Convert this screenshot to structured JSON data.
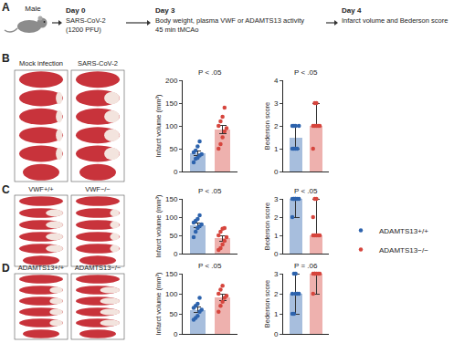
{
  "schematic": {
    "panel_label": "A",
    "subject": "Male",
    "steps": [
      {
        "day": "Day 0",
        "lines": [
          "SARS-CoV-2",
          "(1200 PFU)"
        ]
      },
      {
        "day": "Day 3",
        "lines": [
          "Body weight, plasma VWF or ADAMTS13 activity",
          "45 min tMCAo"
        ]
      },
      {
        "day": "Day 4",
        "lines": [
          "Infarct volume and Bederson score"
        ]
      }
    ]
  },
  "chart_data": [
    {
      "panel_label": "B",
      "type": "bar",
      "ylabel": "Infarct volume (mm³)",
      "annotation": "P < .05",
      "ylim": [
        0,
        200
      ],
      "yticks": [
        0,
        50,
        100,
        150,
        200
      ],
      "tick_labels": "y",
      "grid": false,
      "series": [
        {
          "name": "Mock infection",
          "color": "#2d63ad",
          "values": [
            40
          ],
          "error": [
            5
          ],
          "points": [
            20,
            28,
            30,
            35,
            38,
            42,
            46,
            55,
            66
          ]
        },
        {
          "name": "SARS-CoV-2",
          "color": "#d6453d",
          "values": [
            93
          ],
          "error": [
            9
          ],
          "points": [
            50,
            60,
            75,
            88,
            95,
            100,
            110,
            120,
            140
          ]
        }
      ]
    },
    {
      "panel_label": "B",
      "type": "bar",
      "ylabel": "Bederson score",
      "annotation": "P < .05",
      "ylim": [
        0,
        4
      ],
      "yticks": [
        0,
        1,
        2,
        3,
        4
      ],
      "tick_labels": "y",
      "grid": false,
      "series": [
        {
          "name": "Mock infection",
          "color": "#2d63ad",
          "values": [
            1.5
          ],
          "error_plus": [
            0.5
          ],
          "error_minus": [
            0.5
          ],
          "points": [
            1,
            1,
            1,
            1,
            2,
            2,
            2,
            2
          ]
        },
        {
          "name": "SARS-CoV-2",
          "color": "#d6453d",
          "values": [
            2
          ],
          "error_plus": [
            1
          ],
          "error_minus": [
            0
          ],
          "points": [
            1,
            2,
            2,
            2,
            2,
            2,
            3,
            3
          ]
        }
      ]
    },
    {
      "panel_label": "C",
      "type": "bar",
      "ylabel": "Infarct volume (mm³)",
      "annotation": "P < .05",
      "ylim": [
        0,
        150
      ],
      "yticks": [
        0,
        50,
        100,
        150
      ],
      "tick_labels": "y",
      "grid": false,
      "series": [
        {
          "name": "VWF+/+",
          "color": "#2d63ad",
          "values": [
            78
          ],
          "error": [
            7
          ],
          "points": [
            45,
            60,
            70,
            75,
            80,
            85,
            90,
            95,
            105
          ]
        },
        {
          "name": "VWF−/−",
          "color": "#d6453d",
          "values": [
            42
          ],
          "error": [
            8
          ],
          "points": [
            10,
            15,
            25,
            35,
            45,
            50,
            60,
            68,
            70
          ]
        }
      ]
    },
    {
      "panel_label": "C",
      "type": "bar",
      "ylabel": "Bederson score",
      "annotation": "P < .05",
      "ylim": [
        0,
        3
      ],
      "yticks": [
        0,
        1,
        2,
        3
      ],
      "tick_labels": "y",
      "grid": false,
      "series": [
        {
          "name": "VWF+/+",
          "color": "#2d63ad",
          "values": [
            3
          ],
          "error_plus": [
            0
          ],
          "error_minus": [
            1
          ],
          "points": [
            2,
            3,
            3,
            3,
            3,
            3,
            3,
            3
          ]
        },
        {
          "name": "VWF−/−",
          "color": "#d6453d",
          "values": [
            1
          ],
          "error_plus": [
            2
          ],
          "error_minus": [
            0
          ],
          "points": [
            1,
            1,
            1,
            1,
            1,
            2,
            3,
            3
          ]
        }
      ]
    },
    {
      "panel_label": "D",
      "type": "bar",
      "ylabel": "Infarct volume (mm³)",
      "annotation": "P < .05",
      "ylim": [
        0,
        150
      ],
      "yticks": [
        0,
        50,
        100,
        150
      ],
      "tick_labels": "y",
      "grid": false,
      "legend": "right",
      "series": [
        {
          "name": "ADAMTS13+/+",
          "color": "#2d63ad",
          "values": [
            60
          ],
          "error": [
            6
          ],
          "points": [
            35,
            40,
            45,
            55,
            60,
            65,
            70,
            75,
            90
          ]
        },
        {
          "name": "ADAMTS13−/−",
          "color": "#d6453d",
          "values": [
            90
          ],
          "error": [
            8
          ],
          "points": [
            55,
            70,
            80,
            90,
            95,
            100,
            110,
            120
          ]
        }
      ]
    },
    {
      "panel_label": "D",
      "type": "bar",
      "ylabel": "Bederson score",
      "annotation": "P = .06",
      "ylim": [
        0,
        3
      ],
      "yticks": [
        0,
        1,
        2,
        3
      ],
      "tick_labels": "y",
      "grid": false,
      "series": [
        {
          "name": "ADAMTS13+/+",
          "color": "#2d63ad",
          "values": [
            2
          ],
          "error_plus": [
            1
          ],
          "error_minus": [
            1
          ],
          "points": [
            1,
            1,
            2,
            2,
            2,
            2,
            3,
            3
          ]
        },
        {
          "name": "ADAMTS13−/−",
          "color": "#d6453d",
          "values": [
            3
          ],
          "error_plus": [
            0
          ],
          "error_minus": [
            1
          ],
          "points": [
            2,
            3,
            3,
            3,
            3,
            3,
            3
          ]
        }
      ]
    }
  ]
}
